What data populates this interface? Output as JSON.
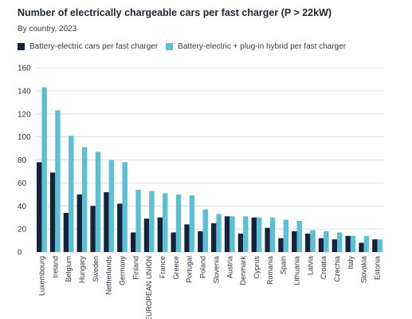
{
  "header": {
    "title": "Number of electrically chargeable cars per fast charger (P > 22kW)",
    "subtitle": "By country, 2023"
  },
  "colors": {
    "bev": "#13233d",
    "phev": "#5bc0d3",
    "grid": "#dcdfe3",
    "text": "#2b3440"
  },
  "chart_data": {
    "type": "bar",
    "title": "Number of electrically chargeable cars per fast charger (P > 22kW)",
    "subtitle": "By country, 2023",
    "xlabel": "",
    "ylabel": "",
    "ylim": [
      0,
      160
    ],
    "yticks": [
      0,
      20,
      40,
      60,
      80,
      100,
      120,
      140,
      160
    ],
    "grid": true,
    "legend_position": "top-left",
    "categories": [
      "Luxembourg",
      "Ireland",
      "Belgium",
      "Hungary",
      "Sweden",
      "Netherlands",
      "Germany",
      "Finland",
      "EUROPEAN UNION",
      "France",
      "Greece",
      "Portugal",
      "Poland",
      "Slovenia",
      "Austria",
      "Denmark",
      "Cyprus",
      "Romania",
      "Spain",
      "Lithuania",
      "Latvia",
      "Croatia",
      "Czechia",
      "Italy",
      "Slovakia",
      "Estonia"
    ],
    "series": [
      {
        "name": "Battery-electric cars per fast charger",
        "color": "#13233d",
        "values": [
          78,
          69,
          34,
          50,
          40,
          52,
          42,
          17,
          29,
          30,
          17,
          24,
          18,
          25,
          31,
          16,
          30,
          21,
          12,
          18,
          16,
          12,
          11,
          14,
          8,
          11
        ]
      },
      {
        "name": "Battery-electric + plug-in hybrid per fast charger",
        "color": "#5bc0d3",
        "values": [
          143,
          123,
          101,
          91,
          87,
          80,
          78,
          54,
          53,
          51,
          50,
          49,
          37,
          33,
          31,
          31,
          30,
          30,
          28,
          27,
          19,
          18,
          17,
          14,
          14,
          11
        ]
      }
    ]
  }
}
